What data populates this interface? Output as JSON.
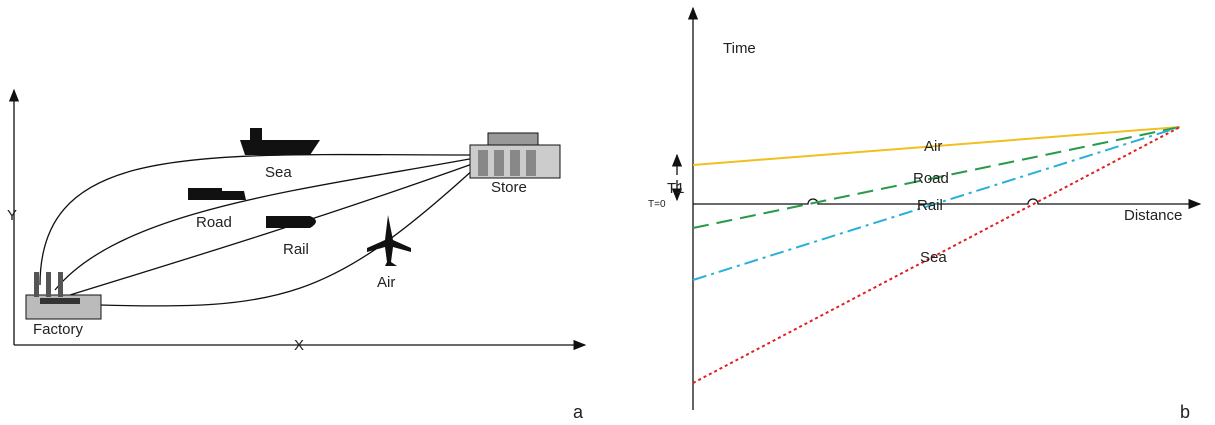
{
  "panel_a": {
    "axis_y": "Y",
    "axis_x": "X",
    "routes": [
      "Sea",
      "Road",
      "Rail",
      "Air"
    ],
    "origin": "Factory",
    "destination": "Store",
    "label": "a"
  },
  "panel_b": {
    "axis_y": "Time",
    "axis_x": "Distance",
    "interval": "T1",
    "zero": "T=0",
    "routes": [
      "Air",
      "Road",
      "Rail",
      "Sea"
    ],
    "label": "b"
  }
}
